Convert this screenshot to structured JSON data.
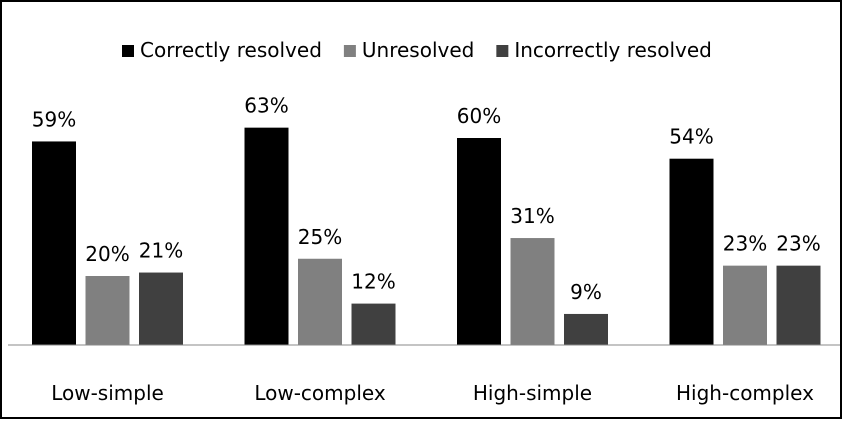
{
  "chart_data": {
    "type": "bar",
    "title": "",
    "xlabel": "",
    "ylabel": "",
    "categories": [
      "Low-simple",
      "Low-complex",
      "High-simple",
      "High-complex"
    ],
    "series": [
      {
        "name": "Correctly resolved",
        "values": [
          59,
          63,
          60,
          54
        ],
        "labels": [
          "59%",
          "63%",
          "60%",
          "54%"
        ],
        "color": "#000000"
      },
      {
        "name": "Unresolved",
        "values": [
          20,
          25,
          31,
          23
        ],
        "labels": [
          "20%",
          "25%",
          "31%",
          "23%"
        ],
        "color": "#808080"
      },
      {
        "name": "Incorrectly resolved",
        "values": [
          21,
          12,
          9,
          23
        ],
        "labels": [
          "21%",
          "12%",
          "9%",
          "23%"
        ],
        "color": "#404040"
      }
    ],
    "ylim": [
      0,
      100
    ],
    "grid": false,
    "legend_position": "top",
    "value_format": "percent"
  }
}
